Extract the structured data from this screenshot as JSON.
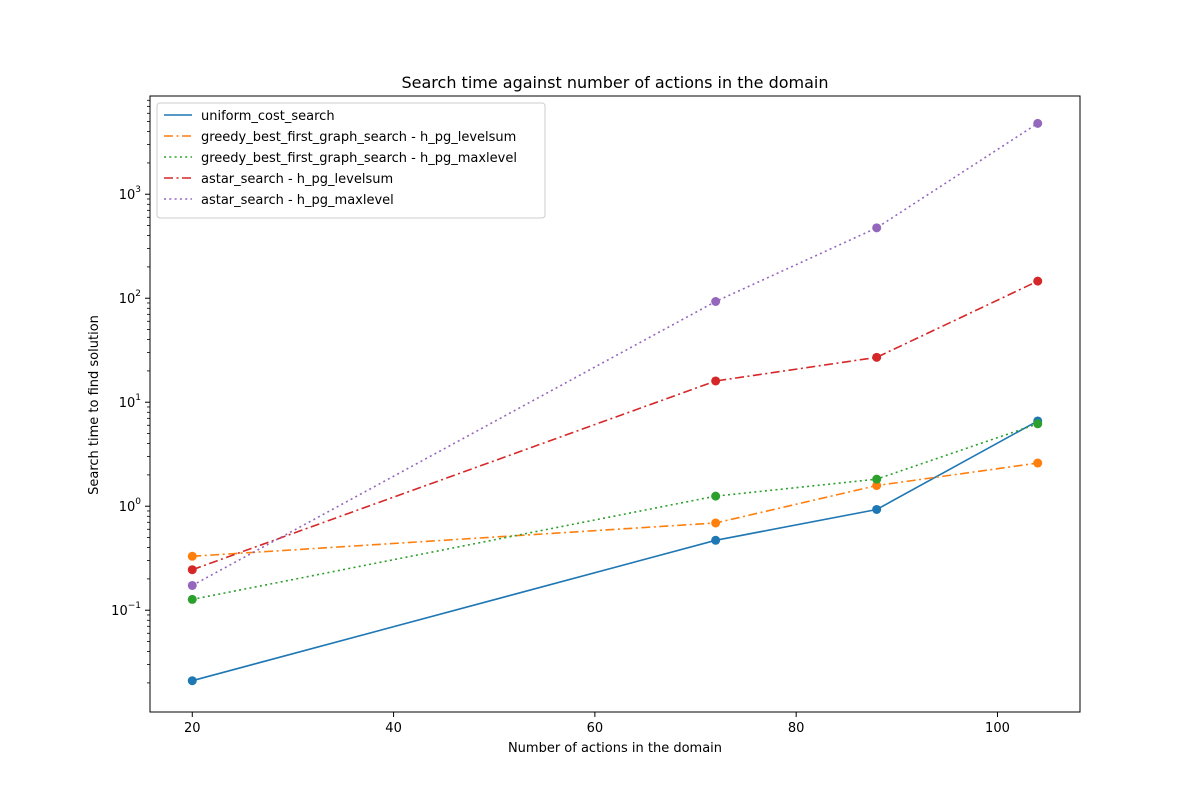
{
  "chart_data": {
    "type": "line",
    "title": "Search time against number of actions in the domain",
    "xlabel": "Number of actions in the domain",
    "ylabel": "Search time to find solution",
    "x": [
      20,
      72,
      88,
      104
    ],
    "xlim": [
      15.8,
      108.2
    ],
    "ylim": [
      0.0105,
      8800
    ],
    "yscale": "log",
    "x_ticks": [
      20,
      40,
      60,
      80,
      100
    ],
    "x_tick_labels": [
      "20",
      "40",
      "60",
      "80",
      "100"
    ],
    "y_tick_exponents": [
      -1,
      0,
      1,
      2,
      3
    ],
    "y_tick_base": "10",
    "legend_location": "upper left",
    "grid": false,
    "series": [
      {
        "name": "uniform_cost_search",
        "values": [
          0.021,
          0.47,
          0.93,
          6.6
        ],
        "color": "#1f77b4",
        "linestyle": "solid"
      },
      {
        "name": "greedy_best_first_graph_search - h_pg_levelsum",
        "values": [
          0.33,
          0.69,
          1.58,
          2.6
        ],
        "color": "#ff7f0e",
        "linestyle": "dashdot"
      },
      {
        "name": "greedy_best_first_graph_search - h_pg_maxlevel",
        "values": [
          0.127,
          1.25,
          1.82,
          6.2
        ],
        "color": "#2ca02c",
        "linestyle": "dotted"
      },
      {
        "name": "astar_search - h_pg_levelsum",
        "values": [
          0.245,
          16.0,
          27.0,
          146
        ],
        "color": "#d62728",
        "linestyle": "dashdot"
      },
      {
        "name": "astar_search - h_pg_maxlevel",
        "values": [
          0.173,
          93,
          475,
          4800
        ],
        "color": "#9467bd",
        "linestyle": "dotted"
      }
    ]
  }
}
